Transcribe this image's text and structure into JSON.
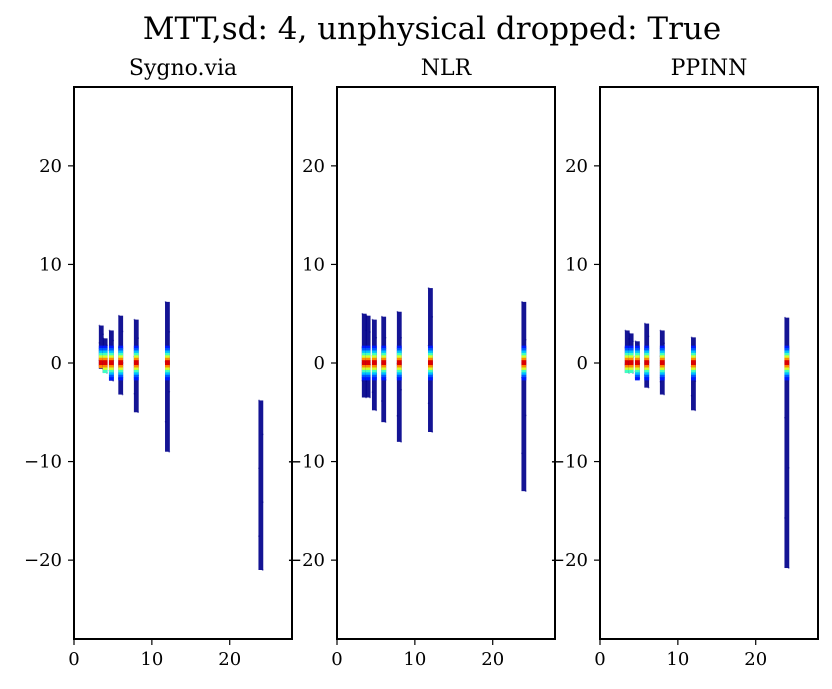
{
  "figure": {
    "suptitle": "MTT,sd: 4, unphysical dropped: True"
  },
  "colors": {
    "point_low": "#00008b",
    "colormap": "jet"
  },
  "chart_data": [
    {
      "type": "scatter",
      "title": "Sygno.via",
      "xlim": [
        0,
        28
      ],
      "ylim": [
        -28,
        28
      ],
      "xticks": [
        0,
        10,
        20
      ],
      "yticks": [
        20,
        10,
        0,
        -10,
        -20
      ],
      "xticklabels": [
        "0",
        "10",
        "20"
      ],
      "yticklabels": [
        "20",
        "10",
        "0",
        "−10",
        "−20"
      ],
      "grid": false,
      "columns": [
        {
          "x": 3.5,
          "ymin": -0.6,
          "ymax": 3.8
        },
        {
          "x": 4.0,
          "ymin": -1.0,
          "ymax": 2.5
        },
        {
          "x": 4.8,
          "ymin": -1.8,
          "ymax": 3.3
        },
        {
          "x": 6.0,
          "ymin": -3.2,
          "ymax": 4.8
        },
        {
          "x": 8.0,
          "ymin": -5.0,
          "ymax": 4.4
        },
        {
          "x": 12.0,
          "ymin": -9.0,
          "ymax": 6.2
        },
        {
          "x": 24.0,
          "ymin": -21.0,
          "ymax": -3.8
        }
      ]
    },
    {
      "type": "scatter",
      "title": "NLR",
      "xlim": [
        0,
        28
      ],
      "ylim": [
        -28,
        28
      ],
      "xticks": [
        0,
        10,
        20
      ],
      "yticks": [
        20,
        10,
        0,
        -10,
        -20
      ],
      "xticklabels": [
        "0",
        "10",
        "20"
      ],
      "yticklabels": [
        "20",
        "10",
        "0",
        "−10",
        "−20"
      ],
      "grid": false,
      "columns": [
        {
          "x": 3.5,
          "ymin": -3.5,
          "ymax": 5.0
        },
        {
          "x": 4.0,
          "ymin": -3.5,
          "ymax": 4.8
        },
        {
          "x": 4.8,
          "ymin": -4.8,
          "ymax": 4.4
        },
        {
          "x": 6.0,
          "ymin": -6.0,
          "ymax": 4.7
        },
        {
          "x": 8.0,
          "ymin": -8.0,
          "ymax": 5.2
        },
        {
          "x": 12.0,
          "ymin": -7.0,
          "ymax": 7.6
        },
        {
          "x": 24.0,
          "ymin": -13.0,
          "ymax": 6.2
        }
      ]
    },
    {
      "type": "scatter",
      "title": "PPINN",
      "xlim": [
        0,
        28
      ],
      "ylim": [
        -28,
        28
      ],
      "xticks": [
        0,
        10,
        20
      ],
      "yticks": [
        20,
        10,
        0,
        -10,
        -20
      ],
      "xticklabels": [
        "0",
        "10",
        "20"
      ],
      "yticklabels": [
        "20",
        "10",
        "0",
        "−10",
        "−20"
      ],
      "grid": false,
      "columns": [
        {
          "x": 3.5,
          "ymin": -1.0,
          "ymax": 3.3
        },
        {
          "x": 4.0,
          "ymin": -1.0,
          "ymax": 3.0
        },
        {
          "x": 4.8,
          "ymin": -1.6,
          "ymax": 2.2
        },
        {
          "x": 6.0,
          "ymin": -2.5,
          "ymax": 4.0
        },
        {
          "x": 8.0,
          "ymin": -3.2,
          "ymax": 3.3
        },
        {
          "x": 12.0,
          "ymin": -4.8,
          "ymax": 2.6
        },
        {
          "x": 24.0,
          "ymin": -20.8,
          "ymax": 4.6
        }
      ]
    }
  ]
}
